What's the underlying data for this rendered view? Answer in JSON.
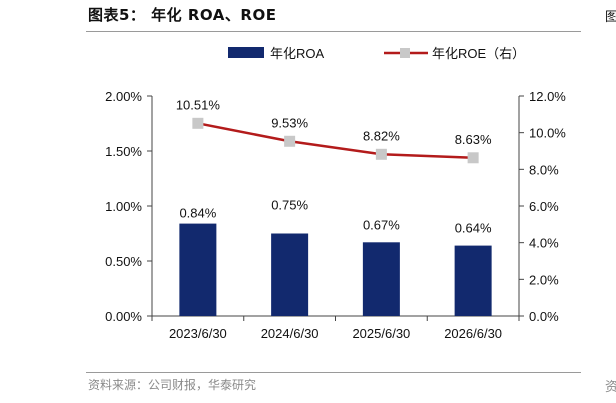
{
  "figure": {
    "title": "图表5： 年化 ROA、ROE",
    "source": "资料来源：公司财报，华泰研究",
    "edge_mark_top": "图",
    "edge_mark_bottom": "资"
  },
  "chart_data": {
    "type": "bar",
    "categories": [
      "2023/6/30",
      "2024/6/30",
      "2025/6/30",
      "2026/6/30"
    ],
    "series": [
      {
        "name": "年化ROA",
        "type": "bar",
        "axis": "left",
        "values": [
          0.84,
          0.75,
          0.67,
          0.64
        ],
        "labels": [
          "0.84%",
          "0.75%",
          "0.67%",
          "0.64%"
        ],
        "color": "#12296e"
      },
      {
        "name": "年化ROE（右）",
        "type": "line",
        "axis": "right",
        "values": [
          10.51,
          9.53,
          8.82,
          8.63
        ],
        "labels": [
          "10.51%",
          "9.53%",
          "8.82%",
          "8.63%"
        ],
        "color": "#b31b1b",
        "marker_color": "#c8c8c8"
      }
    ],
    "y_left": {
      "min": 0,
      "max": 2.0,
      "ticks": [
        "0.00%",
        "0.50%",
        "1.00%",
        "1.50%",
        "2.00%"
      ]
    },
    "y_right": {
      "min": 0,
      "max": 12.0,
      "ticks": [
        "0.0%",
        "2.0%",
        "4.0%",
        "6.0%",
        "8.0%",
        "10.0%",
        "12.0%"
      ]
    },
    "legend_position": "top",
    "grid": false
  }
}
